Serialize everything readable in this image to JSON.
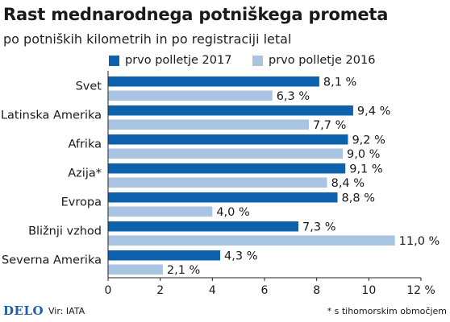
{
  "header": {
    "title": "Rast mednarodnega potniškega prometa",
    "subtitle": "po potniških kilometrih in po registraciji letal"
  },
  "colors": {
    "series_2017": "#0e62ad",
    "series_2016": "#a9c3e3",
    "axis": "#222222"
  },
  "footer": {
    "logo": "DELO",
    "source": "Vir: IATA",
    "footnote": "* s tihomorskim območjem"
  },
  "chart_data": {
    "type": "bar",
    "orientation": "horizontal",
    "categories": [
      "Svet",
      "Latinska Amerika",
      "Afrika",
      "Azija*",
      "Evropa",
      "Bližnji vzhod",
      "Severna Amerika"
    ],
    "series": [
      {
        "name": "prvo polletje 2017",
        "values": [
          8.1,
          9.4,
          9.2,
          9.1,
          8.8,
          7.3,
          4.3
        ],
        "labels": [
          "8,1 %",
          "9,4 %",
          "9,2 %",
          "9,1 %",
          "8,8 %",
          "7,3 %",
          "4,3 %"
        ]
      },
      {
        "name": "prvo polletje 2016",
        "values": [
          6.3,
          7.7,
          9.0,
          8.4,
          4.0,
          11.0,
          2.1
        ],
        "labels": [
          "6,3 %",
          "7,7 %",
          "9,0 %",
          "8,4 %",
          "4,0 %",
          "11,0 %",
          "2,1 %"
        ]
      }
    ],
    "xlim": [
      0,
      12
    ],
    "xticks": [
      0,
      2,
      4,
      6,
      8,
      10,
      12
    ],
    "xtick_labels": [
      "0",
      "2",
      "4",
      "6",
      "8",
      "10",
      "12 %"
    ],
    "legend": "top",
    "grid": false
  }
}
